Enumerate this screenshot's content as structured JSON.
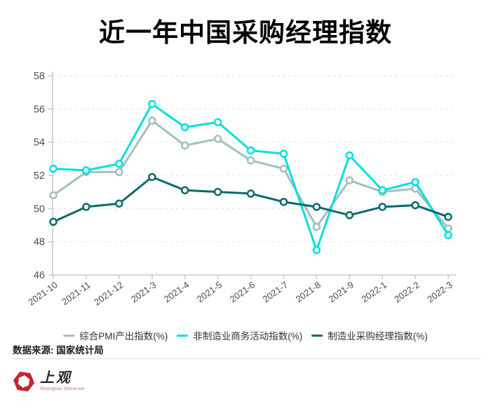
{
  "title": "近一年中国采购经理指数",
  "chart_data": {
    "type": "line",
    "categories": [
      "2021-10",
      "2021-11",
      "2021-12",
      "2021-3",
      "2021-4",
      "2021-5",
      "2021-6",
      "2021-7",
      "2021-8",
      "2021-9",
      "2022-1",
      "2022-2",
      "2022-3"
    ],
    "series": [
      {
        "name": "综合PMI产出指数(%)",
        "color": "#a4bebe",
        "values": [
          50.8,
          52.2,
          52.2,
          55.3,
          53.8,
          54.2,
          52.9,
          52.4,
          48.9,
          51.7,
          51.0,
          51.2,
          48.8
        ]
      },
      {
        "name": "非制造业商务活动指数(%)",
        "color": "#00e0e0",
        "values": [
          52.4,
          52.3,
          52.7,
          56.3,
          54.9,
          55.2,
          53.5,
          53.3,
          47.5,
          53.2,
          51.1,
          51.6,
          48.4
        ]
      },
      {
        "name": "制造业采购经理指数(%)",
        "color": "#0d6a6a",
        "values": [
          49.2,
          50.1,
          50.3,
          51.9,
          51.1,
          51.0,
          50.9,
          50.4,
          50.1,
          49.6,
          50.1,
          50.2,
          49.5
        ]
      }
    ],
    "ylim": [
      46,
      58
    ],
    "yticks": [
      46,
      48,
      50,
      52,
      54,
      56,
      58
    ],
    "grid": "dashed-horizontal",
    "legend_position": "bottom",
    "axis_color": "#c9c9c9",
    "grid_color": "#e4e4e4",
    "tick_label_color": "#4d4d4d",
    "marker": "circle-open"
  },
  "footer": {
    "source_label": "数据来源: 国家统计局"
  },
  "logo": {
    "name": "上观",
    "subtitle": "Shanghai Observer",
    "brand_color": "#c4272e"
  }
}
